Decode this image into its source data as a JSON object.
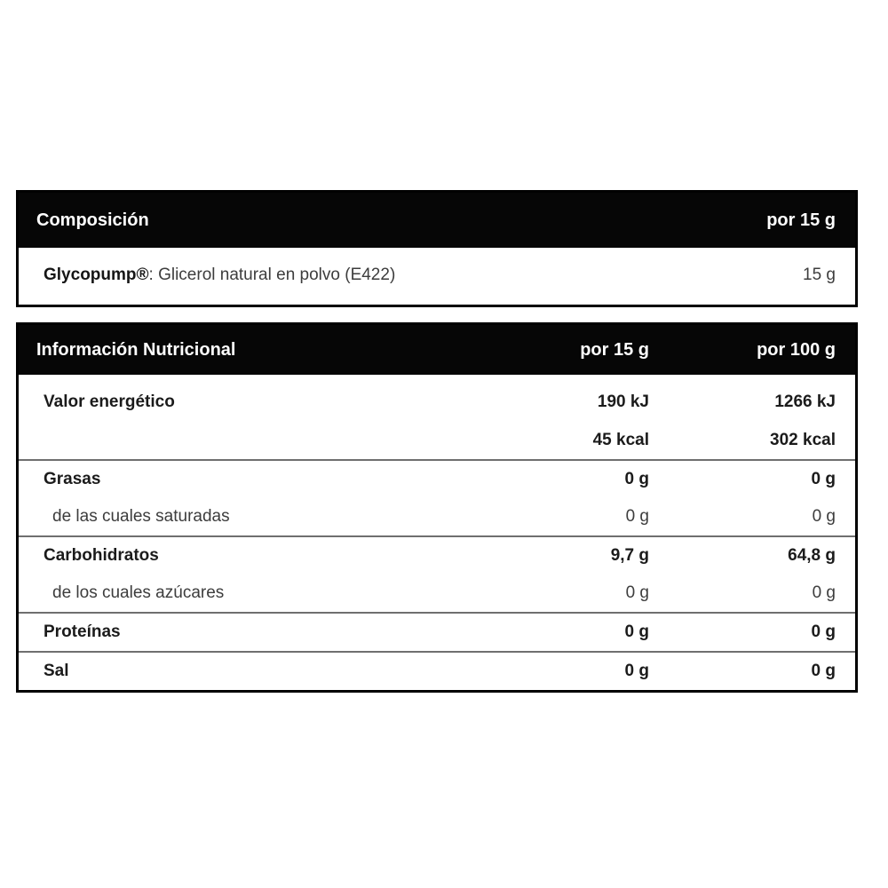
{
  "colors": {
    "page_background": "#ffffff",
    "header_background": "#060606",
    "header_text": "#ffffff",
    "bold_text": "#1b1b1b",
    "normal_text": "#3d3d3d",
    "panel_border": "#000000",
    "divider": "#6f6f6f"
  },
  "composition_table": {
    "header": {
      "title": "Composición",
      "per_label": "por 15 g"
    },
    "row": {
      "name": "Glycopump®",
      "description": ": Glicerol natural en polvo (E422)",
      "amount": "15 g"
    }
  },
  "nutrition_table": {
    "header": {
      "title": "Información Nutricional",
      "col_15": "por 15 g",
      "col_100": "por 100 g"
    },
    "rows": [
      {
        "label": "Valor energético",
        "per15": "190 kJ",
        "per100": "1266 kJ"
      },
      {
        "label": "",
        "per15": "45 kcal",
        "per100": "302 kcal"
      },
      {
        "label": "Grasas",
        "per15": "0 g",
        "per100": "0 g"
      },
      {
        "label": "de las cuales saturadas",
        "per15": "0 g",
        "per100": "0 g"
      },
      {
        "label": "Carbohidratos",
        "per15": "9,7 g",
        "per100": "64,8 g"
      },
      {
        "label": "de los cuales azúcares",
        "per15": "0 g",
        "per100": "0 g"
      },
      {
        "label": "Proteínas",
        "per15": "0 g",
        "per100": "0 g"
      },
      {
        "label": "Sal",
        "per15": "0 g",
        "per100": "0 g"
      }
    ]
  }
}
